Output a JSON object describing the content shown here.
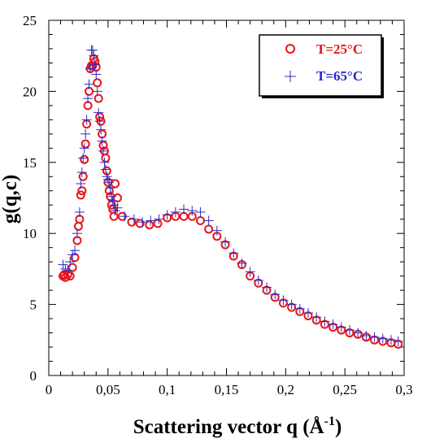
{
  "chart_data": {
    "type": "scatter",
    "title": "",
    "xlabel": "Scattering  vector  q (Å",
    "xlabel_sup": "-1",
    "xlabel_close": ")",
    "ylabel": "g(q,c)",
    "xlim": [
      0,
      0.3
    ],
    "ylim": [
      0,
      25
    ],
    "x_ticks": [
      0,
      0.05,
      0.1,
      0.15,
      0.2,
      0.25,
      0.3
    ],
    "x_tick_labels": [
      "0",
      "0,05",
      "0,1",
      "0,15",
      "0,2",
      "0,25",
      "0,3"
    ],
    "y_ticks": [
      0,
      5,
      10,
      15,
      20,
      25
    ],
    "y_tick_labels": [
      "0",
      "5",
      "10",
      "15",
      "20",
      "25"
    ],
    "legend_position": "top-right",
    "series": [
      {
        "name": "T=25°C",
        "marker": "circle",
        "color": "#e8151b",
        "x": [
          0.012,
          0.013,
          0.014,
          0.016,
          0.018,
          0.02,
          0.022,
          0.024,
          0.025,
          0.026,
          0.027,
          0.028,
          0.029,
          0.03,
          0.031,
          0.032,
          0.033,
          0.034,
          0.035,
          0.036,
          0.037,
          0.038,
          0.039,
          0.04,
          0.041,
          0.042,
          0.043,
          0.044,
          0.045,
          0.046,
          0.047,
          0.048,
          0.049,
          0.05,
          0.051,
          0.052,
          0.053,
          0.054,
          0.055,
          0.056,
          0.058,
          0.062,
          0.07,
          0.077,
          0.085,
          0.092,
          0.1,
          0.107,
          0.114,
          0.121,
          0.128,
          0.135,
          0.142,
          0.149,
          0.156,
          0.163,
          0.17,
          0.177,
          0.184,
          0.191,
          0.198,
          0.205,
          0.212,
          0.219,
          0.226,
          0.233,
          0.24,
          0.247,
          0.254,
          0.261,
          0.268,
          0.275,
          0.282,
          0.289,
          0.295
        ],
        "y": [
          7.0,
          7.1,
          6.9,
          7.1,
          7.0,
          7.6,
          8.3,
          9.5,
          10.5,
          11.0,
          12.7,
          13.0,
          14.0,
          15.2,
          16.3,
          17.7,
          19.0,
          20.0,
          21.6,
          21.8,
          21.8,
          22.3,
          22.1,
          21.7,
          20.6,
          19.5,
          18.2,
          17.9,
          17.0,
          16.2,
          15.8,
          15.3,
          14.4,
          13.6,
          13.0,
          12.6,
          12.0,
          11.7,
          11.2,
          13.5,
          12.5,
          11.2,
          10.8,
          10.7,
          10.6,
          10.7,
          11.1,
          11.2,
          11.2,
          11.2,
          10.9,
          10.3,
          9.8,
          9.2,
          8.4,
          7.8,
          7.0,
          6.5,
          6.0,
          5.5,
          5.1,
          4.8,
          4.5,
          4.2,
          3.9,
          3.6,
          3.4,
          3.2,
          3.0,
          2.9,
          2.7,
          2.5,
          2.4,
          2.3,
          2.2
        ]
      },
      {
        "name": "T=65°C",
        "marker": "plus",
        "color": "#2929c8",
        "x": [
          0.012,
          0.014,
          0.016,
          0.018,
          0.02,
          0.022,
          0.024,
          0.026,
          0.027,
          0.028,
          0.029,
          0.03,
          0.031,
          0.032,
          0.033,
          0.034,
          0.035,
          0.036,
          0.037,
          0.038,
          0.039,
          0.04,
          0.041,
          0.042,
          0.043,
          0.044,
          0.045,
          0.046,
          0.047,
          0.048,
          0.049,
          0.05,
          0.051,
          0.052,
          0.053,
          0.054,
          0.055,
          0.056,
          0.058,
          0.064,
          0.072,
          0.079,
          0.086,
          0.093,
          0.1,
          0.107,
          0.114,
          0.121,
          0.128,
          0.135,
          0.142,
          0.149,
          0.156,
          0.163,
          0.17,
          0.177,
          0.184,
          0.191,
          0.198,
          0.205,
          0.212,
          0.219,
          0.226,
          0.233,
          0.24,
          0.247,
          0.254,
          0.261,
          0.268,
          0.275,
          0.282,
          0.289,
          0.295
        ],
        "y": [
          7.8,
          7.5,
          7.4,
          8.0,
          8.5,
          8.8,
          10.0,
          11.5,
          13.5,
          14.3,
          15.3,
          16.0,
          17.0,
          18.0,
          19.5,
          20.5,
          21.6,
          22.9,
          22.9,
          22.5,
          21.9,
          21.2,
          20.0,
          18.5,
          17.9,
          17.3,
          16.5,
          15.8,
          15.0,
          14.5,
          14.0,
          13.8,
          13.6,
          13.2,
          12.6,
          12.3,
          12.0,
          11.6,
          11.8,
          11.2,
          11.0,
          10.8,
          10.9,
          11.0,
          11.3,
          11.5,
          11.7,
          11.6,
          11.5,
          10.9,
          10.2,
          9.4,
          8.6,
          7.9,
          7.3,
          6.7,
          6.2,
          5.7,
          5.3,
          5.0,
          4.7,
          4.4,
          4.1,
          3.8,
          3.6,
          3.4,
          3.2,
          3.0,
          2.8,
          2.7,
          2.6,
          2.5,
          2.4
        ]
      }
    ]
  }
}
